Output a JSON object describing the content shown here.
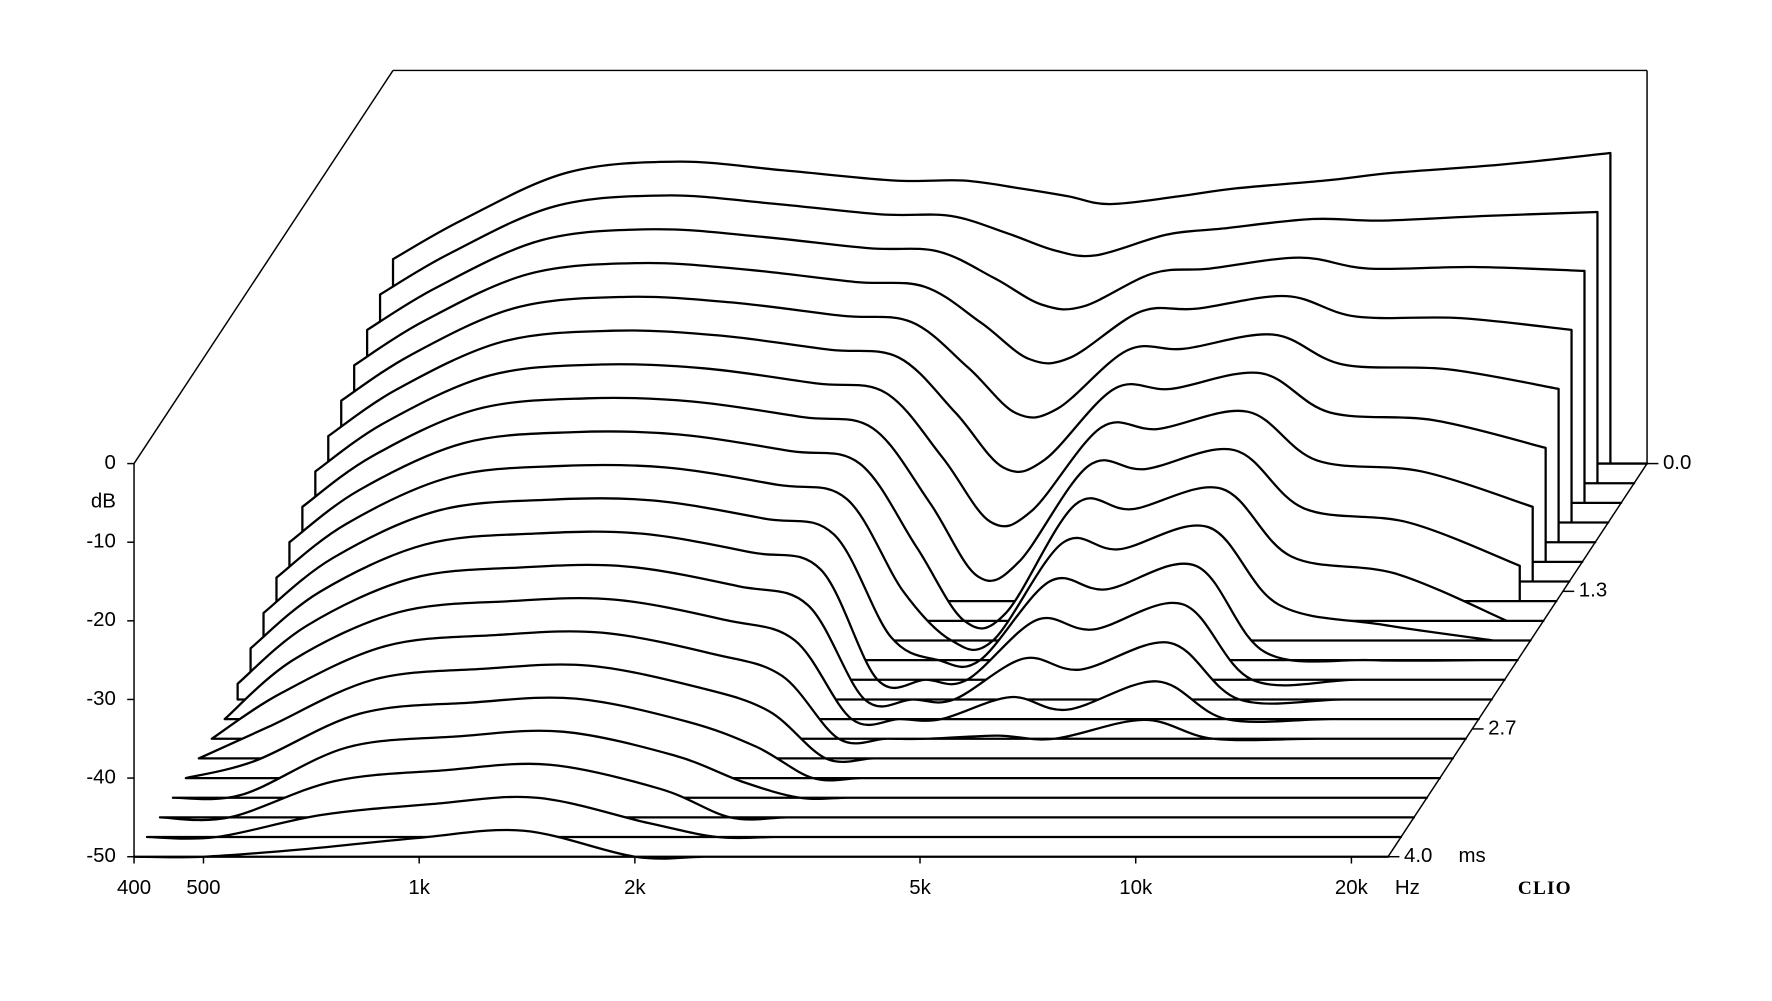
{
  "chart_data": {
    "type": "waterfall",
    "x": [
      400,
      500,
      700,
      1000,
      1400,
      2000,
      2500,
      3000,
      3500,
      4000,
      5000,
      6000,
      8000,
      10000,
      14000,
      20000
    ],
    "z": [
      0,
      0.2,
      0.4,
      0.6,
      0.8,
      1.0,
      1.2,
      1.4,
      1.6,
      1.8,
      2.0,
      2.2,
      2.4,
      2.6,
      2.8,
      3.0,
      3.2,
      3.4,
      3.6,
      3.8,
      4.0
    ],
    "series": [
      {
        "values": [
          -24,
          -19,
          -13,
          -11.6,
          -12.7,
          -14,
          -14,
          -15,
          -16,
          -17,
          -16,
          -15,
          -14,
          -13,
          -12,
          -10.5
        ]
      },
      {
        "values": [
          -26,
          -20.8,
          -14.8,
          -13.4,
          -14.4,
          -15.8,
          -16,
          -18.2,
          -20.4,
          -21,
          -18.4,
          -17.6,
          -16.4,
          -16.6,
          -16,
          -15.5
        ]
      },
      {
        "values": [
          -28,
          -22.6,
          -16.6,
          -15.2,
          -16.1,
          -17.6,
          -18,
          -21.4,
          -24.8,
          -25,
          -20.8,
          -20.2,
          -18.8,
          -20.2,
          -20,
          -20.5
        ]
      },
      {
        "values": [
          -30,
          -24.4,
          -18.4,
          -17,
          -17.8,
          -19.4,
          -20,
          -24.6,
          -29.2,
          -29,
          -23.2,
          -22.8,
          -21.2,
          -23.8,
          -24,
          -25.5
        ]
      },
      {
        "values": [
          -32,
          -26.2,
          -20.2,
          -18.8,
          -19.5,
          -21.2,
          -22,
          -27.8,
          -33.6,
          -33,
          -25.6,
          -25.4,
          -23.6,
          -27.4,
          -28,
          -30.5
        ]
      },
      {
        "values": [
          -34,
          -28,
          -22,
          -20.6,
          -21.2,
          -23,
          -24,
          -31,
          -38,
          -37,
          -28,
          -28,
          -26,
          -31,
          -32,
          -35.5
        ]
      },
      {
        "values": [
          -36,
          -29.8,
          -23.8,
          -22.4,
          -22.9,
          -24.8,
          -26,
          -34.2,
          -42.4,
          -41,
          -30.4,
          -30.6,
          -28.4,
          -34.6,
          -36,
          -40.5
        ]
      },
      {
        "values": [
          -38,
          -31.6,
          -25.6,
          -24.2,
          -24.6,
          -26.6,
          -28,
          -37.4,
          -46.8,
          -45,
          -32.8,
          -33.2,
          -30.8,
          -38.2,
          -40,
          -45.5
        ]
      },
      {
        "values": [
          -40,
          -33.4,
          -27.4,
          -26,
          -26.3,
          -28.4,
          -30,
          -40.6,
          -50,
          -49,
          -35.2,
          -35.8,
          -33.2,
          -41.8,
          -44,
          -50
        ]
      },
      {
        "values": [
          -42,
          -35.2,
          -29.2,
          -27.8,
          -28,
          -30.2,
          -32,
          -43.8,
          -50,
          -50,
          -37.6,
          -38.4,
          -35.6,
          -45.4,
          -48,
          -50
        ]
      },
      {
        "values": [
          -44,
          -37,
          -31,
          -29.6,
          -29.7,
          -32,
          -34,
          -47,
          -50,
          -50,
          -40,
          -41,
          -38,
          -49,
          -50,
          -50
        ]
      },
      {
        "values": [
          -46,
          -38.8,
          -32.8,
          -31.4,
          -31.4,
          -33.8,
          -36,
          -50,
          -50,
          -50,
          -42.4,
          -43.6,
          -40.4,
          -50,
          -50,
          -50
        ]
      },
      {
        "values": [
          -48,
          -40.6,
          -34.6,
          -33.2,
          -33.1,
          -35.6,
          -38,
          -50,
          -50,
          -50,
          -44.8,
          -46.2,
          -42.8,
          -50,
          -50,
          -50
        ]
      },
      {
        "values": [
          -50,
          -42.4,
          -36.4,
          -35,
          -34.8,
          -37.4,
          -40,
          -50,
          -50,
          -50,
          -47.2,
          -48.8,
          -45.2,
          -50,
          -50,
          -50
        ]
      },
      {
        "values": [
          -50,
          -44.2,
          -38.2,
          -36.8,
          -36.5,
          -39.2,
          -42,
          -50,
          -50,
          -50,
          -49.6,
          -50,
          -47.6,
          -50,
          -50,
          -50
        ]
      },
      {
        "values": [
          -50,
          -46,
          -40,
          -38.6,
          -38.2,
          -41,
          -44,
          -50,
          -50,
          -50,
          -50,
          -50,
          -50,
          -50,
          -50,
          -50
        ]
      },
      {
        "values": [
          -50,
          -47.8,
          -41.8,
          -40.4,
          -39.9,
          -42.8,
          -46,
          -50,
          -50,
          -50,
          -50,
          -50,
          -50,
          -50,
          -50,
          -50
        ]
      },
      {
        "values": [
          -50,
          -49.6,
          -43.6,
          -42.2,
          -41.6,
          -44.6,
          -48,
          -50,
          -50,
          -50,
          -50,
          -50,
          -50,
          -50,
          -50,
          -50
        ]
      },
      {
        "values": [
          -50,
          -50,
          -45.4,
          -44,
          -43.3,
          -46.4,
          -50,
          -50,
          -50,
          -50,
          -50,
          -50,
          -50,
          -50,
          -50,
          -50
        ]
      },
      {
        "values": [
          -50,
          -50,
          -47.2,
          -45.8,
          -45,
          -48.2,
          -50,
          -50,
          -50,
          -50,
          -50,
          -50,
          -50,
          -50,
          -50,
          -50
        ]
      },
      {
        "values": [
          -50,
          -50,
          -49,
          -47.6,
          -46.7,
          -50,
          -50,
          -50,
          -50,
          -50,
          -50,
          -50,
          -50,
          -50,
          -50,
          -50
        ]
      }
    ],
    "color": "#000000",
    "xlim": [
      400,
      22500
    ],
    "ylim": [
      -50,
      0
    ],
    "zlim": [
      0,
      4
    ],
    "xticks": [
      400,
      500,
      {
        "value": 1000,
        "label": "1k"
      },
      {
        "value": 2000,
        "label": "2k"
      },
      {
        "value": 5000,
        "label": "5k"
      },
      {
        "value": 10000,
        "label": "10k"
      },
      {
        "value": 20000,
        "label": "20k"
      }
    ],
    "yticks": [
      0,
      -10,
      -20,
      -30,
      -40,
      -50
    ],
    "zticks": [
      {
        "value": 0,
        "label": "0.0"
      },
      1.3,
      2.7,
      {
        "value": 4,
        "label": "4.0"
      }
    ],
    "x_label": "Hz",
    "y_label": "dB",
    "z_label": "ms"
  },
  "brand": "CLIO"
}
